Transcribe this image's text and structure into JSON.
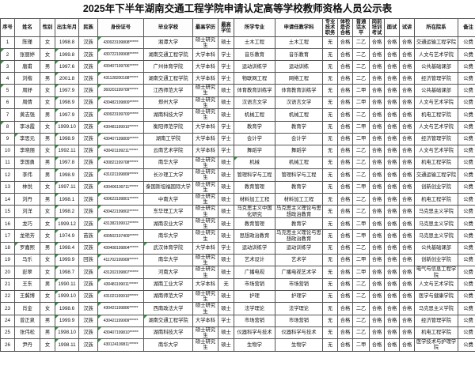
{
  "title": "2025年下半年湖南交通工程学院申请认定高等学校教师资格人员公示表",
  "remark_color": "#2e9b3c",
  "columns": [
    {
      "key": "xh",
      "label": "序号"
    },
    {
      "key": "xm",
      "label": "姓名"
    },
    {
      "key": "xb",
      "label": "性别"
    },
    {
      "key": "csny",
      "label": "出生年月"
    },
    {
      "key": "mz",
      "label": "民族"
    },
    {
      "key": "sfzh",
      "label": "身份证号"
    },
    {
      "key": "byxx",
      "label": "毕业学校"
    },
    {
      "key": "zgxl",
      "label": "最高学历"
    },
    {
      "key": "zgxw",
      "label": "最高学位"
    },
    {
      "key": "sxzy",
      "label": "所学专业"
    },
    {
      "key": "sqrjxk",
      "label": "申请任教学科"
    },
    {
      "key": "zyjszw",
      "label": "专业技术职务"
    },
    {
      "key": "tjsfhg",
      "label": "体检是否合格"
    },
    {
      "key": "pthsp",
      "label": "普通话水平"
    },
    {
      "key": "gqpxks",
      "label": "岗前培训考试"
    },
    {
      "key": "ms",
      "label": "面试"
    },
    {
      "key": "sj",
      "label": "试讲"
    },
    {
      "key": "szyx",
      "label": "所在院系"
    },
    {
      "key": "bz",
      "label": "备注"
    }
  ],
  "rows": [
    {
      "cells": [
        "1",
        "陈瑾",
        "女",
        "1998.8",
        "汉族",
        "430923199808******",
        "湘潭大学",
        "硕士研究生",
        "硕士",
        "土木工程",
        "土木工程",
        "无",
        "合格",
        "二乙",
        "合格",
        "合格",
        "合格",
        "交通运输工程学院",
        "公费"
      ],
      "tri": [
        5
      ]
    },
    {
      "cells": [
        "2",
        "张丽婷",
        "女",
        "1999.8",
        "汉族",
        "430722199908******",
        "湖南交通工程学院",
        "大学本科",
        "学士",
        "音乐教育",
        "音乐教育",
        "无",
        "合格",
        "二乙",
        "合格",
        "合格",
        "合格",
        "人文与艺术学院",
        "公费"
      ],
      "tri": [
        0,
        3,
        5
      ]
    },
    {
      "cells": [
        "3",
        "唐甫",
        "男",
        "1997.6",
        "汉族",
        "430407199706******",
        "广州体育学院",
        "大学本科",
        "学士",
        "运动训练学",
        "运动训练",
        "无",
        "合格",
        "二乙",
        "合格",
        "合格",
        "合格",
        "公共基础课部",
        "公费"
      ],
      "tri": [
        0,
        3,
        5
      ]
    },
    {
      "cells": [
        "4",
        "刘楷",
        "男",
        "2001.8",
        "汉族",
        "431128200108******",
        "湖南交通工程学院",
        "大学本科",
        "学士",
        "物联网工程",
        "网络工程",
        "无",
        "合格",
        "二乙",
        "合格",
        "合格",
        "合格",
        "经济管理学院",
        "公费"
      ],
      "tri": [
        3,
        5
      ]
    },
    {
      "cells": [
        "5",
        "周妤",
        "女",
        "1997.9",
        "汉族",
        "360201199709******",
        "江西师范大学",
        "硕士研究生",
        "硕士",
        "体育教育训练学",
        "体育教育训练学",
        "无",
        "合格",
        "二甲",
        "合格",
        "合格",
        "合格",
        "公共基础课部",
        "公费"
      ],
      "tri": [
        0,
        3,
        5
      ]
    },
    {
      "cells": [
        "6",
        "周倩",
        "女",
        "1998.9",
        "汉族",
        "430482199809******",
        "郑州大学",
        "硕士研究生",
        "硕士",
        "汉语言文学",
        "汉语言文学",
        "无",
        "合格",
        "二甲",
        "合格",
        "合格",
        "合格",
        "人文与艺术学院",
        "公费"
      ],
      "tri": [
        3,
        5
      ]
    },
    {
      "cells": [
        "7",
        "黄志强",
        "男",
        "1997.9",
        "汉族",
        "430923199709******",
        "湖南科技大学",
        "硕士研究生",
        "硕士",
        "机械工程",
        "机械工程",
        "无",
        "合格",
        "二乙",
        "合格",
        "合格",
        "合格",
        "机电工程学院",
        "公费"
      ],
      "tri": [
        3,
        5
      ]
    },
    {
      "cells": [
        "8",
        "李冰霞",
        "女",
        "1999.10",
        "汉族",
        "430481199910******",
        "衡阳师范学院",
        "大学本科",
        "学士",
        "教育学",
        "教育学",
        "无",
        "合格",
        "二甲",
        "合格",
        "合格",
        "合格",
        "人文与艺术学院",
        "公费"
      ],
      "tri": [
        0,
        3,
        5
      ]
    },
    {
      "cells": [
        "9",
        "李思元",
        "男",
        "1998.9",
        "汉族",
        "430407199809******",
        "湖南工学院",
        "大学本科",
        "学士",
        "会计学",
        "会计学",
        "无",
        "合格",
        "二甲",
        "合格",
        "合格",
        "合格",
        "经济管理学院",
        "公费"
      ],
      "tri": [
        1,
        3,
        5
      ]
    },
    {
      "cells": [
        "10",
        "李晓丽",
        "女",
        "1992.11",
        "汉族",
        "430421199211******",
        "云南艺术学院",
        "大学本科",
        "学士",
        "舞蹈学",
        "舞蹈学",
        "无",
        "合格",
        "二乙",
        "合格",
        "合格",
        "合格",
        "人文与艺术学院",
        "公费"
      ],
      "tri": [
        3,
        5
      ]
    },
    {
      "cells": [
        "11",
        "李国勇",
        "男",
        "1997.8",
        "汉族",
        "430821199708******",
        "南华大学",
        "硕士研究生",
        "硕士",
        "机械",
        "机械工程",
        "无",
        "合格",
        "二乙",
        "合格",
        "合格",
        "合格",
        "机电工程学院",
        "公费"
      ],
      "tri": [
        3,
        5,
        9
      ]
    },
    {
      "cells": [
        "12",
        "李伟",
        "男",
        "1998.9",
        "汉族",
        "431021199809******",
        "长沙理工大学",
        "硕士研究生",
        "硕士",
        "管理科学与工程",
        "管理科学与工程",
        "无",
        "合格",
        "二乙",
        "合格",
        "合格",
        "合格",
        "交通运输工程学院",
        "公费"
      ],
      "tri": [
        3,
        5
      ]
    },
    {
      "cells": [
        "13",
        "林悦",
        "女",
        "1997.11",
        "汉族",
        "430406199711******",
        "泰国斯坦福国际大学",
        "硕士研究生",
        "硕士",
        "教育管理",
        "教育学",
        "无",
        "合格",
        "二甲",
        "合格",
        "合格",
        "合格",
        "创新创业学院",
        "公费"
      ],
      "tri": [
        3,
        5
      ]
    },
    {
      "cells": [
        "14",
        "刘丹",
        "男",
        "1998.1",
        "汉族",
        "430623199801******",
        "中南大学",
        "硕士研究生",
        "硕士",
        "材料加工工程",
        "材料加工工程",
        "无",
        "合格",
        "二乙",
        "合格",
        "合格",
        "合格",
        "机电工程学院",
        "公费"
      ],
      "tri": [
        3,
        5
      ]
    },
    {
      "cells": [
        "15",
        "刘洋",
        "女",
        "1998.2",
        "汉族",
        "430422199802******",
        "东华理工大学",
        "硕士研究生",
        "硕士",
        "马克思主义中国化研究",
        "马克思主义理论与思想政治教育",
        "无",
        "合格",
        "二乙",
        "合格",
        "合格",
        "合格",
        "马克思主义学院",
        "公费"
      ],
      "tri": [
        3,
        5
      ]
    },
    {
      "cells": [
        "16",
        "龙巧",
        "女",
        "1999.12",
        "汉族",
        "431382199912******",
        "湖南农业大学",
        "硕士研究生",
        "硕士",
        "教育管理",
        "教育学",
        "无",
        "合格",
        "二甲",
        "合格",
        "合格",
        "合格",
        "马克思主义学院",
        "公费"
      ],
      "tri": [
        3,
        5
      ]
    },
    {
      "cells": [
        "17",
        "龙艳芳",
        "女",
        "1974.9",
        "苗族",
        "430502197409******",
        "南华大学",
        "硕士研究生",
        "硕士",
        "思想政治教育",
        "马克思主义理论与思想政治教育",
        "无",
        "合格",
        "二甲",
        "合格",
        "合格",
        "合格",
        "马克思主义学院",
        "公费"
      ],
      "tri": [
        3,
        5
      ]
    },
    {
      "cells": [
        "18",
        "罗嘉熙",
        "男",
        "1998.4",
        "汉族",
        "430408199804******",
        "武汉体育学院",
        "大学本科",
        "学士",
        "运动训练学",
        "运动训练学",
        "无",
        "合格",
        "二乙",
        "合格",
        "合格",
        "合格",
        "公共基础课部",
        "公费"
      ],
      "tri": [
        1,
        3,
        5,
        6
      ]
    },
    {
      "cells": [
        "19",
        "马乐",
        "女",
        "1999.9",
        "回族",
        "411702199909******",
        "南华大学",
        "硕士研究生",
        "硕士",
        "艺术设计",
        "艺术学",
        "无",
        "合格",
        "二甲",
        "合格",
        "合格",
        "合格",
        "创新创业学院",
        "公费"
      ],
      "tri": [
        3,
        5
      ]
    },
    {
      "cells": [
        "20",
        "彭翠",
        "女",
        "1998.7",
        "汉族",
        "431202199807******",
        "河南大学",
        "硕士研究生",
        "硕士",
        "广播电视",
        "广播电视艺术学",
        "无",
        "合格",
        "二甲",
        "合格",
        "合格",
        "合格",
        "电气与信息工程学院",
        "公费"
      ],
      "tri": [
        3,
        5
      ]
    },
    {
      "cells": [
        "21",
        "王东",
        "男",
        "1990.11",
        "汉族",
        "430481199011******",
        "湖南工业大学",
        "大学本科",
        "无",
        "市场营销",
        "市场营销",
        "无",
        "合格",
        "二乙",
        "合格",
        "合格",
        "合格",
        "人文与艺术学院",
        "公费"
      ],
      "tri": [
        3,
        5
      ]
    },
    {
      "cells": [
        "22",
        "王冀博",
        "女",
        "1999.10",
        "汉族",
        "431021199910******",
        "湖南师范大学",
        "硕士研究生",
        "硕士",
        "护理",
        "护理学",
        "无",
        "合格",
        "二乙",
        "合格",
        "合格",
        "合格",
        "医学与健康学院",
        "公费"
      ],
      "tri": [
        3,
        5
      ]
    },
    {
      "cells": [
        "23",
        "肖金",
        "女",
        "1998.6",
        "汉族",
        "430421199806******",
        "西南政法大学",
        "硕士研究生",
        "硕士",
        "法学理论",
        "法学理论",
        "无",
        "合格",
        "二乙",
        "合格",
        "合格",
        "合格",
        "马克思主义学院",
        "公费"
      ],
      "tri": [
        3,
        5
      ]
    },
    {
      "cells": [
        "24",
        "曾正泉",
        "男",
        "1999.9",
        "汉族",
        "430421199909******",
        "湖南交通工程学院",
        "大学本科",
        "学士",
        "市场营销",
        "市场营销",
        "无",
        "合格",
        "二乙",
        "合格",
        "合格",
        "合格",
        "经济管理学院",
        "公费"
      ],
      "tri": [
        3,
        5,
        6
      ]
    },
    {
      "cells": [
        "25",
        "张伟松",
        "男",
        "1998.10",
        "汉族",
        "430407199810******",
        "湖南科技大学",
        "硕士研究生",
        "硕士",
        "仪器科学与技术",
        "仪器科学与技术",
        "无",
        "合格",
        "二乙",
        "合格",
        "合格",
        "合格",
        "机电工程学院",
        "公费"
      ],
      "tri": [
        3,
        5
      ]
    },
    {
      "cells": [
        "26",
        "尹丹",
        "女",
        "1998.11",
        "汉族",
        "430124199811******",
        "南华大学",
        "硕士研究生",
        "硕士",
        "生物学",
        "生物学",
        "无",
        "合格",
        "二甲",
        "合格",
        "合格",
        "合格",
        "医学技术与护理学院",
        "公费"
      ],
      "tri": [
        3,
        5
      ]
    }
  ]
}
